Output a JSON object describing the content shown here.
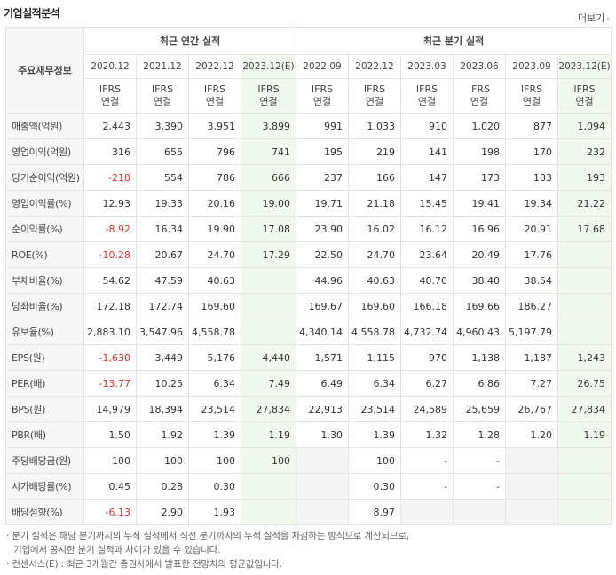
{
  "section_title": "기업실적분석",
  "more_label": "더보기",
  "more_icon": "chevron-right-icon",
  "header": {
    "row_label": "주요재무정보",
    "annual_group": "최근 연간 실적",
    "quarterly_group": "최근 분기 실적",
    "periods": [
      "2020.12",
      "2021.12",
      "2022.12",
      "2023.12(E)",
      "2022.09",
      "2022.12",
      "2023.03",
      "2023.06",
      "2023.09",
      "2023.12(E)"
    ],
    "basis_top": "IFRS",
    "basis_bottom": "연결"
  },
  "rows": [
    {
      "label": "매출액(억원)",
      "values": [
        "2,443",
        "3,390",
        "3,951",
        "3,899",
        "991",
        "1,033",
        "910",
        "1,020",
        "877",
        "1,094"
      ]
    },
    {
      "label": "영업이익(억원)",
      "values": [
        "316",
        "655",
        "796",
        "741",
        "195",
        "219",
        "141",
        "198",
        "170",
        "232"
      ]
    },
    {
      "label": "당기순이익(억원)",
      "values": [
        "-218",
        "554",
        "786",
        "666",
        "237",
        "166",
        "147",
        "173",
        "183",
        "193"
      ]
    },
    {
      "label": "영업이익률(%)",
      "values": [
        "12.93",
        "19.33",
        "20.16",
        "19.00",
        "19.71",
        "21.18",
        "15.45",
        "19.41",
        "19.34",
        "21.22"
      ]
    },
    {
      "label": "순이익률(%)",
      "values": [
        "-8.92",
        "16.34",
        "19.90",
        "17.08",
        "23.90",
        "16.02",
        "16.12",
        "16.96",
        "20.91",
        "17.68"
      ]
    },
    {
      "label": "ROE(%)",
      "values": [
        "-10.28",
        "20.67",
        "24.70",
        "17.29",
        "22.50",
        "24.70",
        "23.64",
        "20.49",
        "17.76",
        ""
      ]
    },
    {
      "label": "부채비율(%)",
      "values": [
        "54.62",
        "47.59",
        "40.63",
        "",
        "44.96",
        "40.63",
        "40.70",
        "38.40",
        "38.54",
        ""
      ]
    },
    {
      "label": "당좌비율(%)",
      "values": [
        "172.18",
        "172.74",
        "169.60",
        "",
        "169.67",
        "169.60",
        "166.18",
        "169.66",
        "186.27",
        ""
      ]
    },
    {
      "label": "유보율(%)",
      "values": [
        "2,883.10",
        "3,547.96",
        "4,558.78",
        "",
        "4,340.14",
        "4,558.78",
        "4,732.74",
        "4,960.43",
        "5,197.79",
        ""
      ]
    },
    {
      "label": "EPS(원)",
      "values": [
        "-1,630",
        "3,449",
        "5,176",
        "4,440",
        "1,571",
        "1,115",
        "970",
        "1,138",
        "1,187",
        "1,243"
      ]
    },
    {
      "label": "PER(배)",
      "values": [
        "-13.77",
        "10.25",
        "6.34",
        "7.49",
        "6.49",
        "6.34",
        "6.27",
        "6.86",
        "7.27",
        "26.75"
      ]
    },
    {
      "label": "BPS(원)",
      "values": [
        "14,979",
        "18,394",
        "23,514",
        "27,834",
        "22,913",
        "23,514",
        "24,589",
        "25,659",
        "26,767",
        "27,834"
      ]
    },
    {
      "label": "PBR(배)",
      "values": [
        "1.50",
        "1.92",
        "1.39",
        "1.19",
        "1.30",
        "1.39",
        "1.32",
        "1.28",
        "1.20",
        "1.19"
      ]
    },
    {
      "label": "주당배당금(원)",
      "values": [
        "100",
        "100",
        "100",
        "100",
        "",
        "100",
        "-",
        "-",
        "",
        ""
      ]
    },
    {
      "label": "시가배당률(%)",
      "values": [
        "0.45",
        "0.28",
        "0.30",
        "",
        "",
        "0.30",
        "-",
        "-",
        "",
        ""
      ]
    },
    {
      "label": "배당성향(%)",
      "values": [
        "-6.13",
        "2.90",
        "1.93",
        "",
        "",
        "8.97",
        "",
        "",
        "",
        ""
      ]
    }
  ],
  "notes": [
    "· 분기 실적은 해당 분기까지의 누적 실적에서 직전 분기까지의 누적 실적을 차감하는 방식으로 계산되므로,",
    "기업에서 공시한 분기 실적과 차이가 있을 수 있습니다.",
    "· 컨센서스(E) : 최근 3개월간 증권사에서 발표한 전망치의 평균값입니다."
  ],
  "colors": {
    "negative": "#e0312b",
    "basis": "#e6721e",
    "estimate_bg": "#f1f9ee",
    "label_bg": "#f7f7f7",
    "empty_bg": "#f4f4f4"
  }
}
